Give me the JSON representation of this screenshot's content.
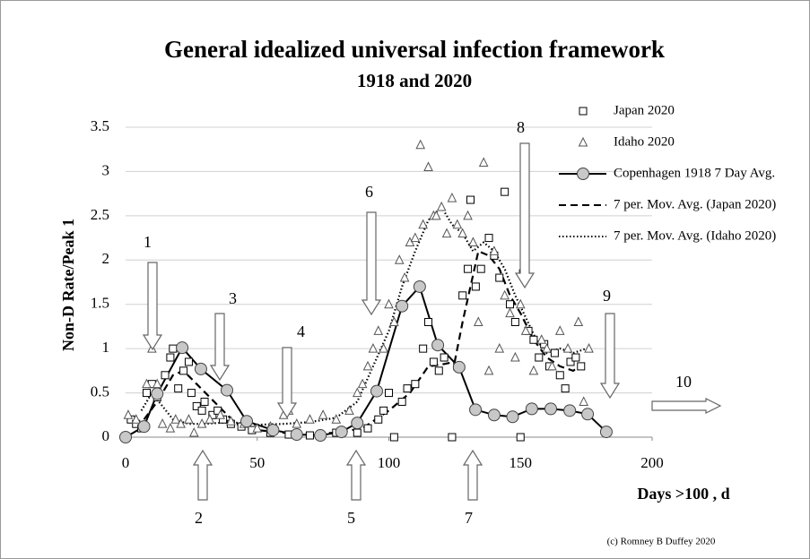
{
  "chart_data": {
    "type": "scatter",
    "title": "General idealized universal infection framework",
    "subtitle": "1918 and 2020",
    "y_label": "Non-D Rate/Peak 1",
    "x_label": "Days >100 , d",
    "credit": "(c) Romney B Duffey 2020",
    "xlim": [
      0,
      200
    ],
    "xticks": [
      0,
      50,
      100,
      150,
      200
    ],
    "ylim": [
      0,
      3.5
    ],
    "yticks": [
      0,
      0.5,
      1,
      1.5,
      2,
      2.5,
      3,
      3.5
    ],
    "grid": true,
    "annotations": [
      "1",
      "2",
      "3",
      "4",
      "5",
      "6",
      "7",
      "8",
      "9",
      "10"
    ],
    "series": [
      {
        "name": "Japan 2020",
        "marker": "square",
        "line": null,
        "color": "#000000",
        "x": [
          2,
          4,
          6,
          8,
          10,
          12,
          15,
          17,
          18,
          20,
          22,
          24,
          25,
          27,
          29,
          30,
          33,
          35,
          37,
          40,
          44,
          48,
          55,
          62,
          70,
          80,
          88,
          92,
          96,
          98,
          100,
          102,
          105,
          107,
          110,
          113,
          115,
          117,
          119,
          121,
          124,
          126,
          128,
          130,
          131,
          133,
          135,
          138,
          140,
          142,
          144,
          146,
          148,
          150,
          151,
          153,
          155,
          157,
          159,
          161,
          163,
          165,
          167,
          169,
          171,
          173
        ],
        "values": [
          0.2,
          0.15,
          0.1,
          0.5,
          0.6,
          0.45,
          0.7,
          0.9,
          1.0,
          0.55,
          0.75,
          0.85,
          0.5,
          0.35,
          0.3,
          0.4,
          0.25,
          0.3,
          0.2,
          0.15,
          0.12,
          0.08,
          0.05,
          0.03,
          0.02,
          0.05,
          0.05,
          0.1,
          0.2,
          0.3,
          0.5,
          0.0,
          0.4,
          0.55,
          0.6,
          1.0,
          1.3,
          0.85,
          0.75,
          0.9,
          0.0,
          0.8,
          1.6,
          1.9,
          2.68,
          1.7,
          1.9,
          2.25,
          2.05,
          1.8,
          2.77,
          1.5,
          1.3,
          0.0,
          1.85,
          1.2,
          1.1,
          0.9,
          1.05,
          0.8,
          0.95,
          0.7,
          0.55,
          0.85,
          0.9,
          0.8
        ]
      },
      {
        "name": "Idaho 2020",
        "marker": "triangle",
        "line": null,
        "color": "#000000",
        "x": [
          1,
          4,
          8,
          10,
          12,
          14,
          17,
          19,
          21,
          24,
          26,
          29,
          32,
          36,
          40,
          45,
          50,
          55,
          60,
          62,
          65,
          70,
          75,
          80,
          85,
          88,
          90,
          92,
          94,
          96,
          98,
          100,
          102,
          104,
          106,
          108,
          110,
          112,
          113,
          115,
          117,
          118,
          120,
          122,
          124,
          126,
          128,
          130,
          132,
          134,
          136,
          138,
          140,
          142,
          144,
          146,
          148,
          150,
          152,
          155,
          158,
          160,
          162,
          165,
          168,
          172,
          174,
          176
        ],
        "values": [
          0.25,
          0.2,
          0.6,
          1.0,
          0.6,
          0.15,
          0.1,
          0.2,
          0.15,
          0.2,
          0.05,
          0.15,
          0.2,
          0.25,
          0.18,
          0.15,
          0.1,
          0.12,
          0.25,
          0.3,
          0.15,
          0.2,
          0.25,
          0.2,
          0.3,
          0.5,
          0.6,
          0.8,
          1.0,
          1.2,
          1.0,
          1.5,
          1.3,
          2.0,
          1.8,
          2.2,
          2.25,
          3.3,
          2.4,
          3.05,
          2.5,
          2.5,
          2.6,
          2.3,
          2.7,
          2.4,
          2.3,
          2.5,
          2.2,
          1.3,
          3.1,
          0.75,
          2.1,
          1.0,
          1.6,
          1.4,
          0.9,
          1.5,
          1.2,
          0.75,
          1.1,
          1.0,
          0.8,
          1.2,
          1.0,
          1.3,
          0.4,
          1.0
        ]
      },
      {
        "name": "Copenhagen 1918  7 Day Avg.",
        "marker": "circle",
        "line": "solid",
        "color": "#000000",
        "x": [
          0,
          7,
          12,
          21.5,
          28.6,
          38.5,
          46,
          56,
          65,
          74,
          82,
          88,
          95.4,
          105,
          111.7,
          118.6,
          126.7,
          132.9,
          140,
          147,
          154.3,
          161.5,
          168.7,
          175.5,
          182.6
        ],
        "values": [
          0,
          0.12,
          0.49,
          1.01,
          0.77,
          0.53,
          0.18,
          0.08,
          0.03,
          0.02,
          0.06,
          0.16,
          0.52,
          1.48,
          1.7,
          1.04,
          0.79,
          0.31,
          0.25,
          0.23,
          0.32,
          0.32,
          0.3,
          0.26,
          0.06
        ]
      },
      {
        "name": "7 per. Mov. Avg. (Japan 2020)",
        "marker": null,
        "line": "dashed",
        "color": "#000000",
        "x": [
          7,
          12,
          18,
          22,
          27,
          32,
          37,
          42,
          50,
          60,
          70,
          80,
          90,
          100,
          108,
          115,
          120,
          125,
          128,
          131,
          134,
          138,
          142,
          146,
          150,
          155,
          160,
          165,
          170,
          175
        ],
        "values": [
          0.2,
          0.4,
          0.7,
          0.75,
          0.6,
          0.45,
          0.3,
          0.15,
          0.08,
          0.05,
          0.04,
          0.05,
          0.1,
          0.3,
          0.5,
          0.8,
          0.82,
          0.85,
          1.3,
          1.7,
          2.1,
          2.05,
          1.9,
          1.6,
          1.4,
          1.1,
          0.9,
          0.8,
          0.75,
          0.85
        ]
      },
      {
        "name": "7 per. Mov. Avg. (Idaho 2020)",
        "marker": null,
        "line": "dotted",
        "color": "#000000",
        "x": [
          6,
          10,
          14,
          18,
          24,
          30,
          40,
          50,
          60,
          70,
          80,
          88,
          94,
          100,
          105,
          110,
          115,
          120,
          124,
          128,
          132,
          136,
          140,
          144,
          148,
          152,
          156,
          160,
          165,
          170,
          175
        ],
        "values": [
          0.3,
          0.5,
          0.35,
          0.2,
          0.15,
          0.15,
          0.17,
          0.14,
          0.15,
          0.17,
          0.22,
          0.4,
          0.8,
          1.2,
          1.7,
          2.1,
          2.45,
          2.6,
          2.4,
          2.3,
          2.1,
          2.2,
          2.1,
          1.9,
          1.6,
          1.35,
          1.1,
          0.95,
          1.0,
          0.95,
          1.0
        ]
      }
    ]
  }
}
